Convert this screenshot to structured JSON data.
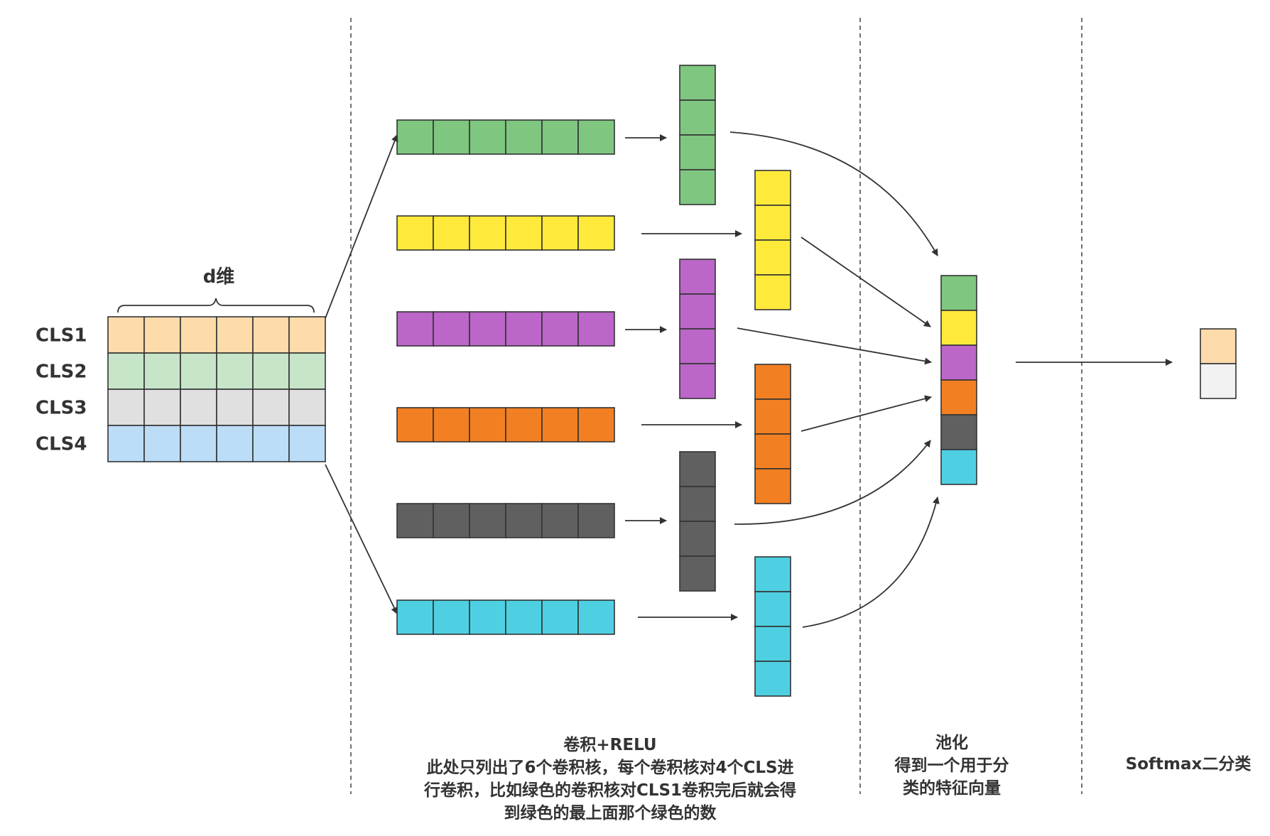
{
  "input": {
    "dim_label": "d维",
    "rows": [
      {
        "label": "CLS1",
        "color": "#FDDBAA"
      },
      {
        "label": "CLS2",
        "color": "#C7E5C9"
      },
      {
        "label": "CLS3",
        "color": "#E0E0E0"
      },
      {
        "label": "CLS4",
        "color": "#BBDDF8"
      }
    ]
  },
  "kernels": [
    {
      "color": "#7FC681"
    },
    {
      "color": "#FFEA3B"
    },
    {
      "color": "#BB66C8"
    },
    {
      "color": "#F28022"
    },
    {
      "color": "#606060"
    },
    {
      "color": "#4FD0E2"
    }
  ],
  "pooled_colors": [
    "#7FC681",
    "#FFEA3B",
    "#BB66C8",
    "#F28022",
    "#606060",
    "#4FD0E2"
  ],
  "output_colors": [
    "#FDDBAA",
    "#F2F2F2"
  ],
  "captions": {
    "conv": [
      "卷积+RELU",
      "此处只列出了6个卷积核，每个卷积核对4个CLS进",
      "行卷积，比如绿色的卷积核对CLS1卷积完后就会得",
      "到绿色的最上面那个绿色的数"
    ],
    "pool": [
      "池化",
      "得到一个用于分",
      "类的特征向量"
    ],
    "softmax": [
      "Softmax二分类"
    ]
  }
}
